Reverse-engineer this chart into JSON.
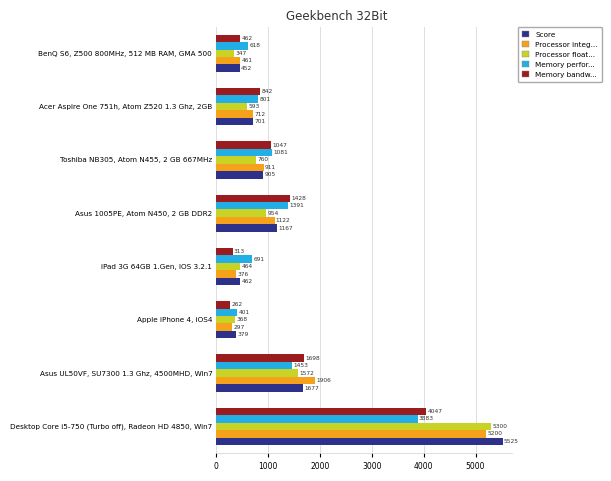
{
  "title": "Geekbench 32Bit",
  "categories": [
    "BenQ S6, Z500 800MHz, 512 MB RAM, GMA 500",
    "Acer Aspire One 751h, Atom Z520 1.3 Ghz, 2GB",
    "Toshiba NB305, Atom N455, 2 GB 667MHz",
    "Asus 1005PE, Atom N450, 2 GB DDR2",
    "iPad 3G 64GB 1.Gen, IOS 3.2.1",
    "Apple iPhone 4, iOS4",
    "Asus UL50VF, SU7300 1.3 Ghz, 4500MHD, Win7",
    "Desktop Core i5-750 (Turbo off), Radeon HD 4850, Win7"
  ],
  "legend_labels": [
    "Score",
    "Processor integ...",
    "Processor float...",
    "Memory perfor...",
    "Memory bandw..."
  ],
  "legend_colors": [
    "#2e318a",
    "#f5a11c",
    "#c8d325",
    "#23aee5",
    "#9b1c1f"
  ],
  "bar_order_labels": [
    "Memory bandw",
    "Memory perfor",
    "Processor float",
    "Processor integ",
    "Score"
  ],
  "bar_order_colors": [
    "#9b1c1f",
    "#23aee5",
    "#c8d325",
    "#f5a11c",
    "#2e318a"
  ],
  "data": [
    [
      462,
      618,
      347,
      461,
      452
    ],
    [
      842,
      801,
      593,
      712,
      701
    ],
    [
      1047,
      1081,
      760,
      911,
      905
    ],
    [
      1428,
      1391,
      954,
      1122,
      1167
    ],
    [
      313,
      691,
      464,
      376,
      462
    ],
    [
      262,
      401,
      368,
      297,
      379
    ],
    [
      1698,
      1453,
      1572,
      1906,
      1677
    ],
    [
      4047,
      3883,
      5300,
      5200,
      5525
    ]
  ],
  "xlim": [
    0,
    5700
  ],
  "xticks": [
    0,
    1000,
    2000,
    3000,
    4000,
    5000
  ],
  "background_color": "#ffffff",
  "grid_color": "#d0d0d0"
}
